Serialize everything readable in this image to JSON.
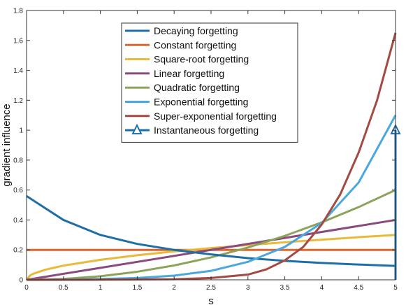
{
  "chart_data": {
    "type": "line",
    "xlabel": "s",
    "ylabel": "gradient influence",
    "xlim": [
      0,
      5
    ],
    "ylim": [
      0,
      1.8
    ],
    "xticks": [
      "0",
      "0.5",
      "1",
      "1.5",
      "2",
      "2.5",
      "3",
      "3.5",
      "4",
      "4.5",
      "5"
    ],
    "yticks": [
      "0",
      "0.2",
      "0.4",
      "0.6",
      "0.8",
      "1",
      "1.2",
      "1.4",
      "1.6",
      "1.8"
    ],
    "grid": false,
    "legend_position": "top-center",
    "series": [
      {
        "name": "Decaying forgetting",
        "color": "#1f6fa6",
        "x": [
          0,
          0.25,
          0.5,
          1,
          1.5,
          2,
          2.5,
          3,
          3.5,
          4,
          4.5,
          5
        ],
        "y": [
          0.56,
          0.48,
          0.4,
          0.3,
          0.24,
          0.2,
          0.17,
          0.145,
          0.127,
          0.113,
          0.102,
          0.093
        ]
      },
      {
        "name": "Constant forgetting",
        "color": "#d9672e",
        "x": [
          0,
          5
        ],
        "y": [
          0.2,
          0.2
        ]
      },
      {
        "name": "Square-root forgetting",
        "color": "#e9b93c",
        "x": [
          0,
          0.05,
          0.1,
          0.25,
          0.5,
          1,
          1.5,
          2,
          2.5,
          3,
          3.5,
          4,
          4.5,
          5
        ],
        "y": [
          0,
          0.03,
          0.042,
          0.067,
          0.095,
          0.134,
          0.164,
          0.19,
          0.212,
          0.232,
          0.251,
          0.268,
          0.285,
          0.3
        ]
      },
      {
        "name": "Linear forgetting",
        "color": "#8a4a7d",
        "x": [
          0,
          5
        ],
        "y": [
          0,
          0.4
        ]
      },
      {
        "name": "Quadratic forgetting",
        "color": "#8ea35a",
        "x": [
          0,
          0.5,
          1,
          1.5,
          2,
          2.5,
          3,
          3.5,
          4,
          4.5,
          5
        ],
        "y": [
          0,
          0.006,
          0.024,
          0.054,
          0.096,
          0.15,
          0.216,
          0.294,
          0.384,
          0.486,
          0.6
        ]
      },
      {
        "name": "Exponential forgetting",
        "color": "#4aa8dc",
        "x": [
          0,
          0.5,
          1,
          1.5,
          2,
          2.5,
          3,
          3.5,
          4,
          4.5,
          5
        ],
        "y": [
          0,
          0.002,
          0.005,
          0.012,
          0.028,
          0.06,
          0.12,
          0.22,
          0.38,
          0.65,
          1.1
        ]
      },
      {
        "name": "Super-exponential forgetting",
        "color": "#a34a42",
        "x": [
          0,
          1,
          2,
          2.5,
          3,
          3.25,
          3.5,
          3.75,
          4,
          4.25,
          4.5,
          4.75,
          5
        ],
        "y": [
          0,
          0.001,
          0.004,
          0.012,
          0.035,
          0.07,
          0.13,
          0.22,
          0.37,
          0.57,
          0.85,
          1.2,
          1.65
        ]
      },
      {
        "name": "Instantaneous forgetting",
        "color": "#1f6fa6",
        "x": [
          5,
          5
        ],
        "y": [
          0,
          1
        ],
        "marker": "triangle"
      }
    ]
  }
}
